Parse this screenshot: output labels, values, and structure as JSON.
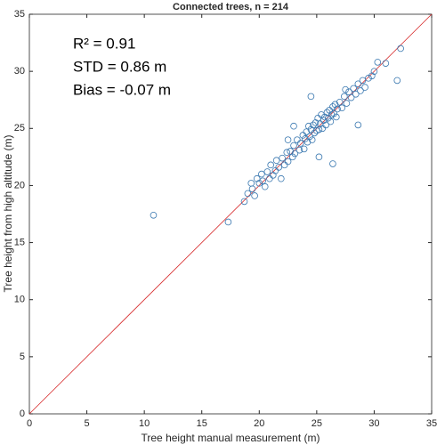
{
  "chart_data": {
    "type": "scatter",
    "title": "Connected trees, n = 214",
    "x_label": "Tree height manual measurement (m)",
    "y_label": "Tree height from high altitude (m)",
    "annotations": [
      "R² = 0.91",
      "STD = 0.86 m",
      "Bias = -0.07 m"
    ],
    "xlim": [
      0,
      35
    ],
    "ylim": [
      0,
      35
    ],
    "xticks": [
      0,
      5,
      10,
      15,
      20,
      25,
      30,
      35
    ],
    "yticks": [
      0,
      5,
      10,
      15,
      20,
      25,
      30,
      35
    ],
    "grid": false,
    "reference_color": "#d62728",
    "series": [
      {
        "name": "Connected trees",
        "color": "#3a78b0",
        "x": [
          18.7,
          19.0,
          19.3,
          19.4,
          19.6,
          19.8,
          20.0,
          20.2,
          20.3,
          20.5,
          20.7,
          20.9,
          21.0,
          21.2,
          21.4,
          21.5,
          21.7,
          21.9,
          22.0,
          22.2,
          22.4,
          22.5,
          22.7,
          22.9,
          23.0,
          23.1,
          23.3,
          23.5,
          23.6,
          23.8,
          23.9,
          24.0,
          24.1,
          24.2,
          24.3,
          24.4,
          24.5,
          24.6,
          24.7,
          24.8,
          24.9,
          25.0,
          25.1,
          25.2,
          25.3,
          25.4,
          25.5,
          25.6,
          25.7,
          25.8,
          25.9,
          26.0,
          26.1,
          26.2,
          26.3,
          26.4,
          26.5,
          26.6,
          26.7,
          26.8,
          27.0,
          27.2,
          27.4,
          27.6,
          27.8,
          28.0,
          28.2,
          28.4,
          28.6,
          28.8,
          29.0,
          29.2,
          29.5,
          29.8,
          30.0,
          30.3,
          31.0,
          32.0,
          32.3,
          10.8,
          17.3,
          26.4,
          28.6,
          23.0,
          22.5,
          24.5,
          27.5,
          25.2
        ],
        "values": [
          18.6,
          19.3,
          20.2,
          19.7,
          19.1,
          20.6,
          20.2,
          21.0,
          20.4,
          19.9,
          21.2,
          20.6,
          21.8,
          20.9,
          21.3,
          22.2,
          21.6,
          20.6,
          22.4,
          21.8,
          22.9,
          22.1,
          23.0,
          22.5,
          23.5,
          22.8,
          24.0,
          23.1,
          23.7,
          24.4,
          23.2,
          24.1,
          24.7,
          23.8,
          25.2,
          24.3,
          24.9,
          24.0,
          25.3,
          24.6,
          25.5,
          24.8,
          25.9,
          24.9,
          25.4,
          26.2,
          25.0,
          25.7,
          26.0,
          25.3,
          26.4,
          25.9,
          26.6,
          25.6,
          26.2,
          26.9,
          26.3,
          27.1,
          26.0,
          26.7,
          27.3,
          26.8,
          27.8,
          27.2,
          28.2,
          27.7,
          28.5,
          28.0,
          28.9,
          28.3,
          29.2,
          28.6,
          29.4,
          29.6,
          30.0,
          30.8,
          30.7,
          29.2,
          32.0,
          17.4,
          16.8,
          21.9,
          25.3,
          25.2,
          24.0,
          27.8,
          28.4,
          22.5
        ]
      }
    ]
  }
}
